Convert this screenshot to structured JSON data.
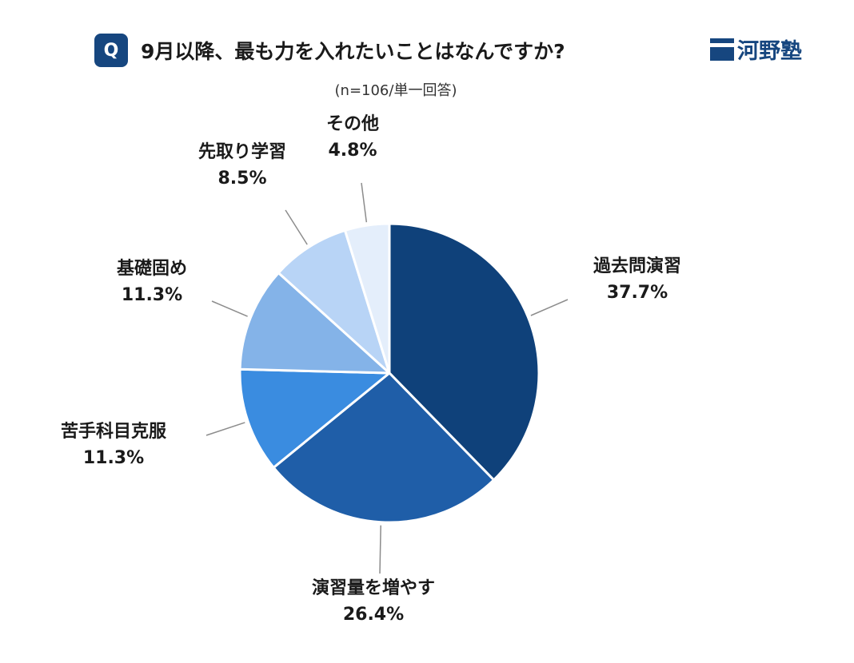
{
  "header": {
    "badge": "Q",
    "title": "9月以降、最も力を入れたいことはなんですか?",
    "subtitle": "(n=106/単一回答)",
    "brand": "河野塾"
  },
  "colors": {
    "brand": "#16467f",
    "slices": [
      "#0f417a",
      "#1f5ea8",
      "#3a8ce0",
      "#84b3e8",
      "#b8d4f6",
      "#e4eefb"
    ]
  },
  "chart_data": {
    "type": "pie",
    "categories": [
      "過去問演習",
      "演習量を増やす",
      "苦手科目克服",
      "基礎固め",
      "先取り学習",
      "その他"
    ],
    "values": [
      37.7,
      26.4,
      11.3,
      11.3,
      8.5,
      4.8
    ],
    "value_labels": [
      "37.7%",
      "26.4%",
      "11.3%",
      "11.3%",
      "8.5%",
      "4.8%"
    ],
    "start": "12 o'clock",
    "direction": "clockwise"
  }
}
